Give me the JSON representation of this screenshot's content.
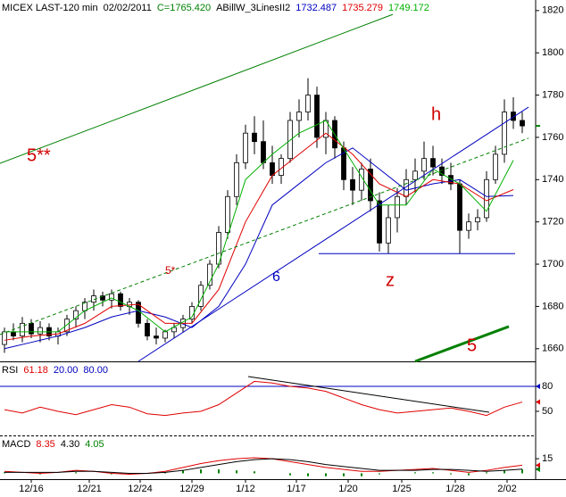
{
  "chart_data": [
    {
      "type": "candlestick",
      "title": "MICEX LAST-120 min",
      "date": "02/02/2011",
      "close": {
        "value": 1765.42,
        "label": "C=1765.420"
      },
      "indicator": "ABillW_3LinesII2",
      "ohlc": [
        [
          1662,
          1670,
          1658,
          1668
        ],
        [
          1668,
          1672,
          1664,
          1666
        ],
        [
          1666,
          1675,
          1663,
          1672
        ],
        [
          1672,
          1674,
          1665,
          1667
        ],
        [
          1667,
          1673,
          1663,
          1670
        ],
        [
          1670,
          1672,
          1664,
          1666
        ],
        [
          1666,
          1670,
          1662,
          1668
        ],
        [
          1668,
          1676,
          1666,
          1674
        ],
        [
          1674,
          1680,
          1670,
          1678
        ],
        [
          1678,
          1684,
          1674,
          1682
        ],
        [
          1682,
          1688,
          1678,
          1685
        ],
        [
          1685,
          1687,
          1680,
          1683
        ],
        [
          1683,
          1688,
          1679,
          1686
        ],
        [
          1686,
          1687,
          1678,
          1680
        ],
        [
          1680,
          1684,
          1676,
          1682
        ],
        [
          1682,
          1683,
          1670,
          1672
        ],
        [
          1672,
          1674,
          1664,
          1666
        ],
        [
          1666,
          1670,
          1662,
          1665
        ],
        [
          1665,
          1669,
          1663,
          1668
        ],
        [
          1668,
          1672,
          1665,
          1670
        ],
        [
          1670,
          1676,
          1668,
          1674
        ],
        [
          1674,
          1682,
          1672,
          1680
        ],
        [
          1680,
          1692,
          1678,
          1690
        ],
        [
          1690,
          1702,
          1688,
          1700
        ],
        [
          1700,
          1718,
          1698,
          1715
        ],
        [
          1715,
          1735,
          1712,
          1732
        ],
        [
          1732,
          1752,
          1728,
          1748
        ],
        [
          1748,
          1766,
          1745,
          1762
        ],
        [
          1762,
          1770,
          1752,
          1758
        ],
        [
          1758,
          1768,
          1745,
          1748
        ],
        [
          1748,
          1756,
          1738,
          1742
        ],
        [
          1742,
          1752,
          1738,
          1750
        ],
        [
          1750,
          1772,
          1748,
          1768
        ],
        [
          1768,
          1778,
          1760,
          1772
        ],
        [
          1772,
          1788,
          1768,
          1780
        ],
        [
          1780,
          1784,
          1755,
          1760
        ],
        [
          1760,
          1772,
          1752,
          1768
        ],
        [
          1768,
          1770,
          1750,
          1755
        ],
        [
          1755,
          1758,
          1735,
          1740
        ],
        [
          1740,
          1746,
          1728,
          1735
        ],
        [
          1735,
          1748,
          1730,
          1745
        ],
        [
          1745,
          1750,
          1725,
          1730
        ],
        [
          1730,
          1734,
          1706,
          1710
        ],
        [
          1710,
          1728,
          1705,
          1722
        ],
        [
          1722,
          1736,
          1715,
          1732
        ],
        [
          1732,
          1745,
          1728,
          1740
        ],
        [
          1740,
          1750,
          1734,
          1744
        ],
        [
          1744,
          1758,
          1740,
          1750
        ],
        [
          1750,
          1756,
          1742,
          1746
        ],
        [
          1746,
          1750,
          1738,
          1742
        ],
        [
          1742,
          1748,
          1735,
          1738
        ],
        [
          1738,
          1740,
          1705,
          1716
        ],
        [
          1716,
          1724,
          1712,
          1720
        ],
        [
          1720,
          1726,
          1716,
          1722
        ],
        [
          1722,
          1744,
          1720,
          1740
        ],
        [
          1740,
          1756,
          1738,
          1752
        ],
        [
          1752,
          1778,
          1748,
          1772
        ],
        [
          1772,
          1779,
          1764,
          1768
        ],
        [
          1768,
          1772,
          1762,
          1765.42
        ]
      ],
      "ma_x": [
        0,
        3,
        6,
        9,
        12,
        15,
        18,
        21,
        24,
        27,
        30,
        33,
        36,
        39,
        42,
        45,
        48,
        51,
        54,
        57
      ],
      "series": [
        {
          "color": "#0000c0",
          "values": [
            1660,
            1663,
            1666,
            1670,
            1675,
            1678,
            1675,
            1670,
            1680,
            1700,
            1728,
            1738,
            1748,
            1755,
            1745,
            1735,
            1738,
            1740,
            1732,
            1732.487
          ]
        },
        {
          "color": "#e00000",
          "values": [
            1664,
            1666,
            1667,
            1672,
            1680,
            1681,
            1672,
            1672,
            1688,
            1720,
            1742,
            1752,
            1762,
            1752,
            1738,
            1732,
            1740,
            1738,
            1730,
            1735.279
          ]
        },
        {
          "color": "#00b000",
          "values": [
            1668,
            1668,
            1668,
            1678,
            1684,
            1678,
            1668,
            1675,
            1700,
            1740,
            1752,
            1762,
            1768,
            1748,
            1728,
            1728,
            1745,
            1738,
            1725,
            1749.172
          ]
        }
      ],
      "lines": [
        {
          "color": "#008000",
          "points": [
            [
              0,
              1747.7
            ],
            [
              44,
              1818.2
            ]
          ]
        },
        {
          "color": "#0000c0",
          "points": [
            [
              15.5,
              1654
            ],
            [
              59.2,
              1774.3
            ]
          ]
        },
        {
          "color": "#0000c0",
          "points": [
            [
              35.7,
              1705
            ],
            [
              57.7,
              1705
            ]
          ]
        },
        {
          "color": "#008000",
          "dash": true,
          "points": [
            [
              0,
              1666.7
            ],
            [
              59.2,
              1759.6
            ]
          ]
        },
        {
          "color": "#008000",
          "thick": true,
          "points": [
            [
              46.5,
              1654
            ],
            [
              57,
              1670.5
            ]
          ]
        }
      ],
      "annotations": [
        "5**",
        "5*",
        "6",
        "z",
        "h",
        "5"
      ],
      "ylim": [
        1654,
        1825
      ],
      "yticks": [
        1660,
        1680,
        1700,
        1720,
        1740,
        1760,
        1780,
        1800,
        1820
      ]
    },
    {
      "type": "line",
      "title": "RSI",
      "readout": [
        61.18,
        {
          "value": 20,
          "label": "20.00"
        },
        {
          "value": 80,
          "label": "80.00"
        }
      ],
      "readout_colors": [
        "#e00000",
        "#0000c0",
        "#0000c0"
      ],
      "x": [
        0,
        2,
        4,
        6,
        8,
        10,
        12,
        14,
        16,
        18,
        20,
        22,
        24,
        26,
        28,
        30,
        32,
        34,
        36,
        38,
        40,
        42,
        44,
        46,
        48,
        50,
        52,
        54,
        56,
        58
      ],
      "series": [
        {
          "color": "#e00000",
          "values": [
            52,
            48,
            55,
            50,
            46,
            52,
            58,
            55,
            47,
            45,
            48,
            50,
            58,
            72,
            86,
            84,
            80,
            78,
            74,
            66,
            58,
            52,
            48,
            50,
            52,
            54,
            50,
            45,
            55,
            61.18
          ]
        }
      ],
      "hlines": [
        80
      ],
      "hline_color": "#0000c0",
      "lines": [
        {
          "color": "#000000",
          "points": [
            [
              27.8,
              91.8
            ],
            [
              54.8,
              48.9
            ]
          ]
        }
      ],
      "ylim": [
        21,
        109
      ],
      "yticks": [
        50,
        80
      ]
    },
    {
      "type": "line",
      "title": "MACD",
      "readout": [
        8.35,
        {
          "value": 4.3,
          "label": "4.30"
        },
        4.05
      ],
      "readout_colors": [
        "#e00000",
        "#000000",
        "#008000"
      ],
      "x": [
        0,
        2,
        4,
        6,
        8,
        10,
        12,
        14,
        16,
        18,
        20,
        22,
        24,
        26,
        28,
        30,
        32,
        34,
        36,
        38,
        40,
        42,
        44,
        46,
        48,
        50,
        52,
        54,
        56,
        58
      ],
      "series": [
        {
          "color": "#e00000",
          "values": [
            2,
            1,
            0,
            1,
            3,
            2,
            0,
            -1,
            0,
            2,
            6,
            10,
            13,
            15,
            16,
            15,
            12,
            9,
            6,
            4,
            2,
            2,
            3,
            4,
            5,
            3,
            1,
            3,
            6,
            8.35
          ]
        },
        {
          "color": "#000000",
          "values": [
            1,
            1,
            1,
            1,
            2,
            2,
            1,
            0,
            0,
            1,
            3,
            6,
            9,
            12,
            14,
            15,
            14,
            12,
            9,
            7,
            5,
            3,
            3,
            3,
            4,
            4,
            3,
            2,
            3,
            4.3
          ]
        }
      ],
      "histogram": {
        "color": "#008000",
        "values": [
          1,
          0,
          -1,
          0,
          1,
          0,
          -1,
          -1,
          0,
          1,
          3,
          4,
          4,
          3,
          2,
          0,
          -2,
          -3,
          -3,
          -3,
          -3,
          -1,
          0,
          1,
          1,
          -1,
          -2,
          1,
          3,
          4.05
        ]
      },
      "ylim": [
        -6,
        38
      ],
      "yticks": [
        15
      ],
      "xlim": [
        0,
        60
      ],
      "xticks": [
        {
          "value": 3.5,
          "label": "12/16"
        },
        {
          "value": 10,
          "label": "12/21"
        },
        {
          "value": 15.7,
          "label": "12/24"
        },
        {
          "value": 21.5,
          "label": "12/29"
        },
        {
          "value": 27.5,
          "label": "1/12"
        },
        {
          "value": 33.2,
          "label": "1/17"
        },
        {
          "value": 39,
          "label": "1/20"
        },
        {
          "value": 45,
          "label": "1/25"
        },
        {
          "value": 51,
          "label": "1/28"
        },
        {
          "value": 56.8,
          "label": "2/02"
        }
      ]
    }
  ]
}
